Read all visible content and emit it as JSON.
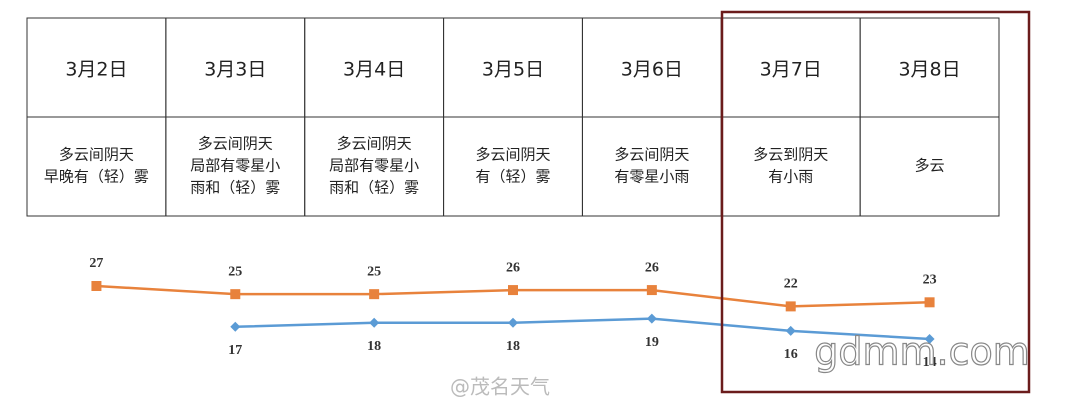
{
  "chart_data": {
    "type": "line",
    "categories": [
      "3月2日",
      "3月3日",
      "3月4日",
      "3月5日",
      "3月6日",
      "3月7日",
      "3月8日"
    ],
    "descriptions": [
      [
        "多云间阴天",
        "早晚有（轻）雾"
      ],
      [
        "多云间阴天",
        "局部有零星小",
        "雨和（轻）雾"
      ],
      [
        "多云间阴天",
        "局部有零星小",
        "雨和（轻）雾"
      ],
      [
        "多云间阴天",
        "有（轻）雾"
      ],
      [
        "多云间阴天",
        "有零星小雨"
      ],
      [
        "多云到阴天",
        "有小雨"
      ],
      [
        "多云"
      ]
    ],
    "series": [
      {
        "color": "#e8823c",
        "values": [
          27,
          25,
          25,
          26,
          26,
          22,
          23
        ]
      },
      {
        "color": "#5b9bd5",
        "values": [
          null,
          17,
          18,
          18,
          19,
          16,
          14
        ]
      }
    ],
    "highlight_color": "#6b1c1c",
    "watermarks": [
      "@茂名天气",
      "gdmm.com"
    ]
  }
}
